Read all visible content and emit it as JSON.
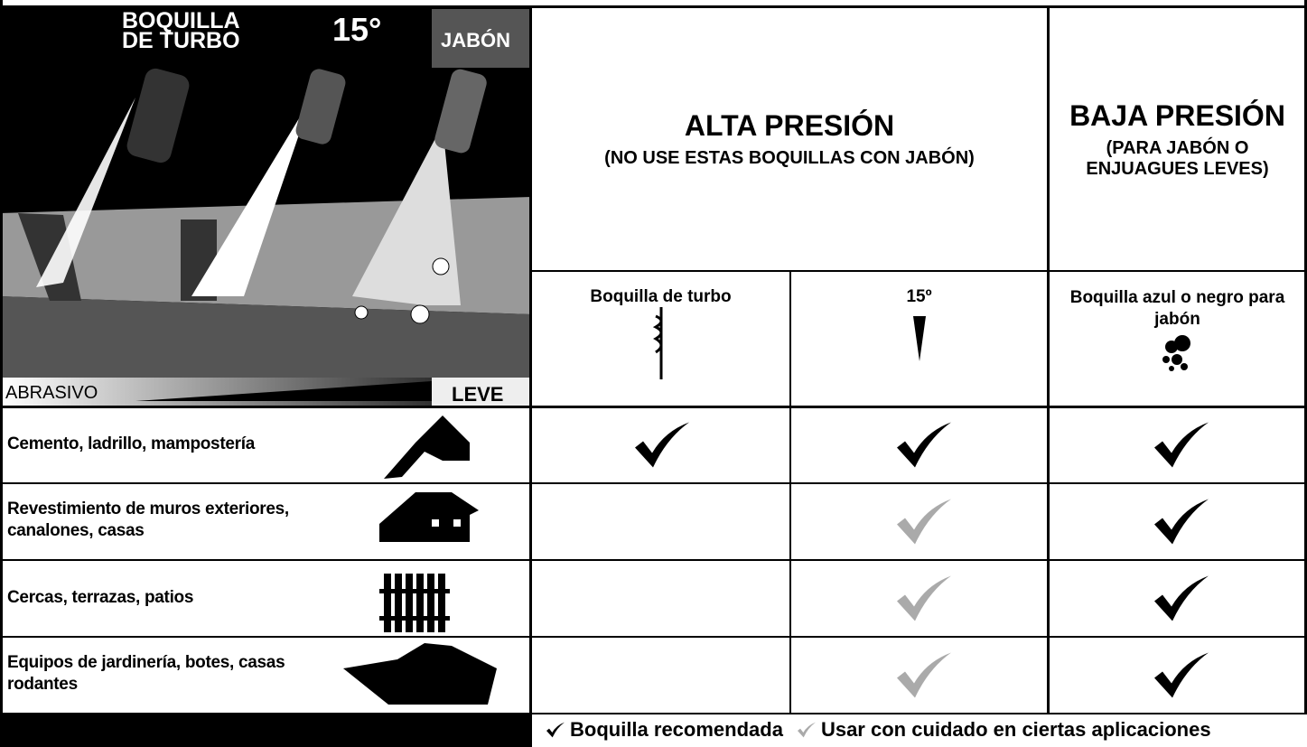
{
  "panel": {
    "title_lines": [
      "BOQUILLA",
      "DE TURBO"
    ],
    "angle": "15°",
    "soap": "JABÓN",
    "scale_left": "ABRASIVO",
    "scale_right": "LEVE"
  },
  "high_pressure": {
    "title": "ALTA PRESIÓN",
    "subtitle": "(NO USE ESTAS BOQUILLAS CON JABÓN)"
  },
  "low_pressure": {
    "title": "BAJA PRESIÓN",
    "subtitle_lines": [
      "(PARA JABÓN O",
      "ENJUAGUES LEVES)"
    ]
  },
  "nozzles": [
    "Boquilla de turbo",
    "15º",
    "Boquilla azul o negro para jabón"
  ],
  "rows": [
    "Cemento, ladrillo, mampostería",
    "Revestimiento de muros exteriores, canalones, casas",
    "Cercas, terrazas, patios",
    "Equipos de jardinería, botes, casas rodantes"
  ],
  "legend": {
    "recommended": "Boquilla recomendada",
    "caution": "Usar con cuidado en ciertas aplicaciones"
  }
}
